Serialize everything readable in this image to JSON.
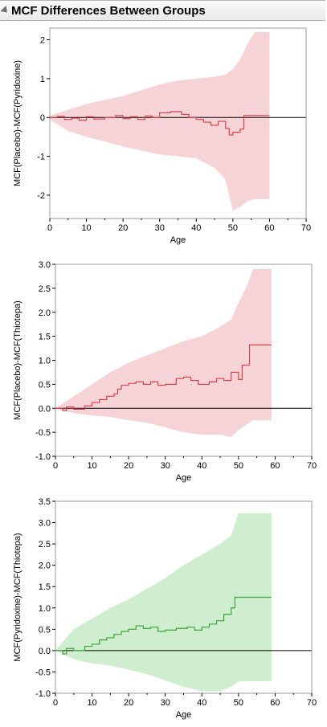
{
  "window": {
    "title": "MCF Differences Between Groups"
  },
  "colors": {
    "red_line": "#d9434b",
    "red_band": "#f6d3d6",
    "green_line": "#3aa43a",
    "green_band": "#cfeecf",
    "zero_line": "#000000",
    "frame": "#9a9a9a"
  },
  "chart_data": [
    {
      "type": "line",
      "title": "",
      "xlabel": "Age",
      "ylabel": "MCF(Placebo)-MCF(Pyridoxine)",
      "xlim": [
        0,
        70
      ],
      "ylim": [
        -2.6,
        2.3
      ],
      "x_ticks": [
        0,
        10,
        20,
        30,
        40,
        50,
        60,
        70
      ],
      "y_ticks": [
        -2,
        -1,
        0,
        1,
        2
      ],
      "y_tick_labels": [
        "-2",
        "-1",
        "0",
        "1",
        "2"
      ],
      "series": [
        {
          "color": "red",
          "step": true,
          "x": [
            0,
            2,
            4,
            6,
            8,
            10,
            12,
            15,
            18,
            20,
            22,
            24,
            26,
            28,
            30,
            33,
            36,
            38,
            40,
            42,
            44,
            46,
            48,
            49,
            50,
            52,
            53,
            60
          ],
          "y": [
            0,
            0.03,
            -0.05,
            -0.02,
            -0.07,
            0.02,
            -0.04,
            0.0,
            0.05,
            -0.03,
            0.02,
            -0.05,
            0.04,
            0.0,
            0.12,
            0.15,
            0.08,
            0.0,
            -0.05,
            -0.12,
            -0.2,
            -0.1,
            -0.28,
            -0.45,
            -0.38,
            -0.3,
            0.05,
            0.05
          ]
        }
      ],
      "band": {
        "x": [
          0,
          5,
          10,
          15,
          20,
          25,
          30,
          35,
          40,
          45,
          48,
          50,
          52,
          54,
          56,
          60
        ],
        "upper": [
          0.05,
          0.2,
          0.35,
          0.45,
          0.55,
          0.7,
          0.85,
          0.95,
          1.0,
          1.05,
          1.1,
          1.25,
          1.5,
          1.9,
          2.2,
          2.2
        ],
        "lower": [
          -0.05,
          -0.35,
          -0.5,
          -0.62,
          -0.75,
          -0.85,
          -0.95,
          -1.0,
          -1.05,
          -1.3,
          -1.6,
          -2.4,
          -2.3,
          -2.15,
          -2.1,
          -2.1
        ]
      }
    },
    {
      "type": "line",
      "title": "",
      "xlabel": "Age",
      "ylabel": "MCF(Placebo)-MCF(Thiotepa)",
      "xlim": [
        0,
        70
      ],
      "ylim": [
        -1.0,
        3.0
      ],
      "x_ticks": [
        0,
        10,
        20,
        30,
        40,
        50,
        60,
        70
      ],
      "y_ticks": [
        -1.0,
        -0.5,
        0.0,
        0.5,
        1.0,
        1.5,
        2.0,
        2.5,
        3.0
      ],
      "y_tick_labels": [
        "-1.0",
        "-0.5",
        "0.0",
        "0.5",
        "1.0",
        "1.5",
        "2.0",
        "2.5",
        "3.0"
      ],
      "series": [
        {
          "color": "red",
          "step": true,
          "x": [
            0,
            2,
            3,
            5,
            8,
            10,
            12,
            14,
            16,
            17,
            18,
            20,
            22,
            24,
            26,
            28,
            30,
            33,
            35,
            37,
            39,
            42,
            44,
            46,
            48,
            50,
            51,
            53,
            59
          ],
          "y": [
            0,
            -0.05,
            0.03,
            -0.02,
            0.05,
            0.12,
            0.18,
            0.25,
            0.3,
            0.4,
            0.48,
            0.52,
            0.55,
            0.5,
            0.55,
            0.48,
            0.5,
            0.62,
            0.65,
            0.58,
            0.5,
            0.55,
            0.62,
            0.58,
            0.75,
            0.6,
            0.9,
            1.32,
            1.32
          ]
        }
      ],
      "band": {
        "x": [
          0,
          5,
          10,
          15,
          20,
          25,
          30,
          35,
          40,
          45,
          48,
          50,
          52,
          54,
          59
        ],
        "upper": [
          0,
          0.25,
          0.5,
          0.75,
          0.95,
          1.1,
          1.25,
          1.4,
          1.5,
          1.7,
          1.85,
          2.2,
          2.5,
          2.9,
          2.9
        ],
        "lower": [
          0,
          -0.1,
          -0.15,
          -0.18,
          -0.25,
          -0.3,
          -0.4,
          -0.5,
          -0.55,
          -0.55,
          -0.6,
          -0.45,
          -0.35,
          -0.25,
          -0.25
        ]
      }
    },
    {
      "type": "line",
      "title": "",
      "xlabel": "Age",
      "ylabel": "MCF(Pyridoxine)-MCF(Thiotepa)",
      "xlim": [
        0,
        70
      ],
      "ylim": [
        -1.0,
        3.5
      ],
      "x_ticks": [
        0,
        10,
        20,
        30,
        40,
        50,
        60,
        70
      ],
      "y_ticks": [
        -1.0,
        -0.5,
        0.0,
        0.5,
        1.0,
        1.5,
        2.0,
        2.5,
        3.0,
        3.5
      ],
      "y_tick_labels": [
        "-1.0",
        "-0.5",
        "0.0",
        "0.5",
        "1.0",
        "1.5",
        "2.0",
        "2.5",
        "3.0",
        "3.5"
      ],
      "series": [
        {
          "color": "green",
          "step": true,
          "x": [
            0,
            2,
            3,
            5,
            8,
            10,
            12,
            14,
            16,
            18,
            20,
            22,
            24,
            26,
            28,
            30,
            33,
            36,
            38,
            40,
            42,
            44,
            46,
            48,
            49,
            59
          ],
          "y": [
            0,
            -0.08,
            0.05,
            0.0,
            0.1,
            0.15,
            0.25,
            0.3,
            0.38,
            0.45,
            0.5,
            0.58,
            0.52,
            0.55,
            0.45,
            0.48,
            0.52,
            0.55,
            0.48,
            0.55,
            0.62,
            0.7,
            0.85,
            1.0,
            1.25,
            1.25
          ]
        }
      ],
      "band": {
        "x": [
          0,
          5,
          10,
          15,
          20,
          25,
          30,
          35,
          40,
          45,
          48,
          50,
          52,
          59
        ],
        "upper": [
          0.0,
          0.5,
          0.75,
          1.0,
          1.2,
          1.45,
          1.7,
          2.0,
          2.25,
          2.5,
          2.7,
          3.22,
          3.22,
          3.22
        ],
        "lower": [
          0.0,
          -0.2,
          -0.3,
          -0.35,
          -0.45,
          -0.55,
          -0.7,
          -0.85,
          -0.95,
          -0.95,
          -0.85,
          -0.72,
          -0.72,
          -0.72
        ]
      }
    }
  ]
}
